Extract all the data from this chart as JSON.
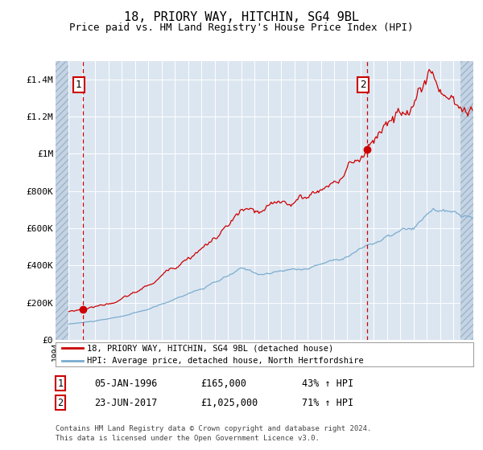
{
  "title": "18, PRIORY WAY, HITCHIN, SG4 9BL",
  "subtitle": "Price paid vs. HM Land Registry's House Price Index (HPI)",
  "title_fontsize": 11,
  "subtitle_fontsize": 9,
  "bg_color": "#dce6f1",
  "hatch_color": "#c4d4e4",
  "red_line_color": "#cc0000",
  "blue_line_color": "#7aadcf",
  "sale1_date_num": 1996.04,
  "sale1_price": 165000,
  "sale2_date_num": 2017.48,
  "sale2_price": 1025000,
  "xmin": 1994.0,
  "xmax": 2025.5,
  "ymin": 0,
  "ymax": 1500000,
  "yticks": [
    0,
    200000,
    400000,
    600000,
    800000,
    1000000,
    1200000,
    1400000
  ],
  "ytick_labels": [
    "£0",
    "£200K",
    "£400K",
    "£600K",
    "£800K",
    "£1M",
    "£1.2M",
    "£1.4M"
  ],
  "legend_line1": "18, PRIORY WAY, HITCHIN, SG4 9BL (detached house)",
  "legend_line2": "HPI: Average price, detached house, North Hertfordshire",
  "note_line1": "Contains HM Land Registry data © Crown copyright and database right 2024.",
  "note_line2": "This data is licensed under the Open Government Licence v3.0.",
  "table_row1": [
    "1",
    "05-JAN-1996",
    "£165,000",
    "43% ↑ HPI"
  ],
  "table_row2": [
    "2",
    "23-JUN-2017",
    "£1,025,000",
    "71% ↑ HPI"
  ]
}
